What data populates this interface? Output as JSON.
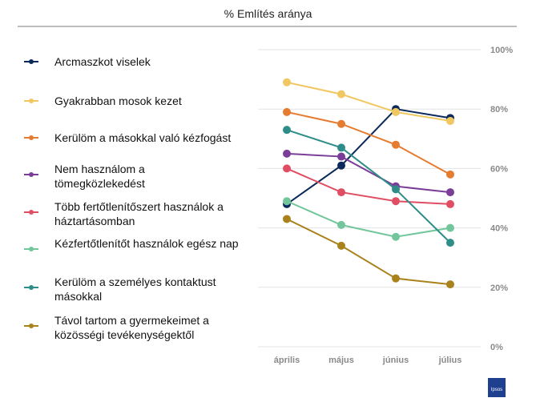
{
  "chart_data": {
    "type": "line",
    "title": "% Említés aránya",
    "categories": [
      "április",
      "május",
      "június",
      "július"
    ],
    "ylim": [
      0,
      100
    ],
    "yticks": [
      "0%",
      "20%",
      "40%",
      "60%",
      "80%",
      "100%"
    ],
    "grid": true,
    "legend_position": "left",
    "series": [
      {
        "name": "Arcmaszkot viselek",
        "color": "#0b2a5b",
        "values": [
          48,
          61,
          80,
          77
        ]
      },
      {
        "name": "Gyakrabban mosok kezet",
        "color": "#f0c760",
        "values": [
          89,
          85,
          79,
          76
        ]
      },
      {
        "name": "Kerülöm a másokkal való kézfogást",
        "color": "#e67c30",
        "values": [
          79,
          75,
          68,
          58
        ]
      },
      {
        "name": "Nem használom a tömegközlekedést",
        "color": "#7a3d98",
        "values": [
          65,
          64,
          54,
          52
        ]
      },
      {
        "name": "Több fertőtlenítőszert használok a háztartásomban",
        "color": "#e04e63",
        "values": [
          60,
          52,
          49,
          48
        ]
      },
      {
        "name": "Kézfertőtlenítőt használok egész nap",
        "color": "#73c69b",
        "values": [
          49,
          41,
          37,
          40
        ]
      },
      {
        "name": "Kerülöm a személyes kontaktust másokkal",
        "color": "#2e8d88",
        "values": [
          73,
          67,
          53,
          35
        ]
      },
      {
        "name": "Távol tartom a gyermekeimet a közösségi tevékenységektől",
        "color": "#a9821b",
        "values": [
          43,
          34,
          23,
          21
        ]
      }
    ]
  },
  "brand": {
    "logo_text": "Ipsos",
    "logo_color": "#1f3f8f"
  }
}
